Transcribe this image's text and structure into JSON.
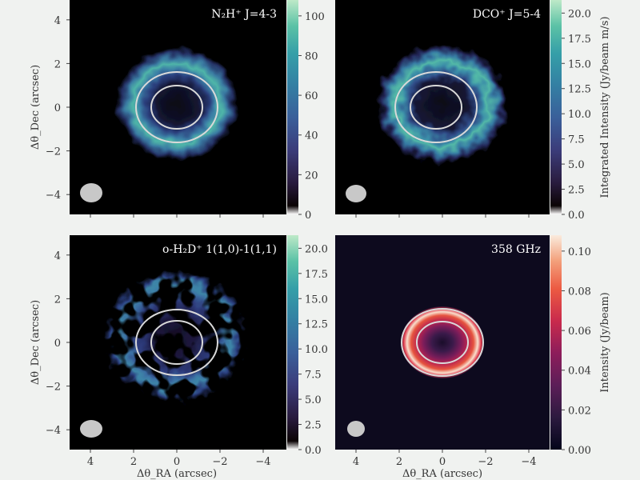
{
  "chart_data": [
    {
      "type": "heatmap",
      "title": "N₂H⁺ J=4-3",
      "ylabel": "Δθ_Dec (arcsec)",
      "xlim": [
        5,
        -5
      ],
      "ylim": [
        -5,
        5
      ],
      "yticks": [
        "4",
        "2",
        "0",
        "−2",
        "−4"
      ],
      "colorbar": {
        "ticks": [
          "0",
          "20",
          "40",
          "60",
          "80",
          "100"
        ],
        "range": [
          0,
          108
        ],
        "colormap": "mako-like"
      },
      "ring": {
        "inner_radius_arcsec": 1.2,
        "outer_radius_arcsec": 1.9
      },
      "emission": {
        "peak_radius_arcsec": 1.6,
        "width_arcsec": 0.9,
        "peak": 100
      }
    },
    {
      "type": "heatmap",
      "title": "DCO⁺ J=5-4",
      "colorbar": {
        "label": "Integrated Intensity (Jy/beam m/s)",
        "ticks": [
          "0.0",
          "2.5",
          "5.0",
          "7.5",
          "10.0",
          "12.5",
          "15.0",
          "17.5",
          "20.0"
        ],
        "range": [
          0,
          21.3
        ],
        "colormap": "mako-like"
      },
      "ring": {
        "inner_radius_arcsec": 1.2,
        "outer_radius_arcsec": 1.9
      },
      "emission": {
        "peak_radius_arcsec": 1.6,
        "width_arcsec": 1.0,
        "peak": 18
      }
    },
    {
      "type": "heatmap",
      "title": "o-H₂D⁺ 1(1,0)-1(1,1)",
      "xlabel": "Δθ_RA (arcsec)",
      "ylabel": "Δθ_Dec (arcsec)",
      "xticks": [
        "4",
        "2",
        "0",
        "−2",
        "−4"
      ],
      "yticks": [
        "4",
        "2",
        "0",
        "−2",
        "−4"
      ],
      "colorbar": {
        "ticks": [
          "0.0",
          "2.5",
          "5.0",
          "7.5",
          "10.0",
          "12.5",
          "15.0",
          "17.5",
          "20.0"
        ],
        "range": [
          0,
          21.3
        ],
        "colormap": "mako-like"
      },
      "ring": {
        "inner_radius_arcsec": 1.2,
        "outer_radius_arcsec": 1.9
      },
      "emission": {
        "peak_radius_arcsec": 2.3,
        "width_arcsec": 1.4,
        "peak": 15
      }
    },
    {
      "type": "heatmap",
      "title": "358 GHz",
      "xlabel": "Δθ_RA (arcsec)",
      "xticks": [
        "4",
        "2",
        "0",
        "−2",
        "−4"
      ],
      "colorbar": {
        "label": "Intensity (Jy/beam)",
        "ticks": [
          "0.00",
          "0.02",
          "0.04",
          "0.06",
          "0.08",
          "0.10"
        ],
        "range": [
          0,
          0.108
        ],
        "colormap": "rocket-like"
      },
      "ring": {
        "inner_radius_arcsec": 1.2,
        "outer_radius_arcsec": 1.9
      },
      "emission": {
        "peak_radius_arcsec": 1.5,
        "width_arcsec": 0.35,
        "peak": 0.1
      }
    }
  ],
  "colors": {
    "background": "#f0f2f0",
    "ring": "#d9d9d9",
    "beam": "#c8c8c8"
  }
}
